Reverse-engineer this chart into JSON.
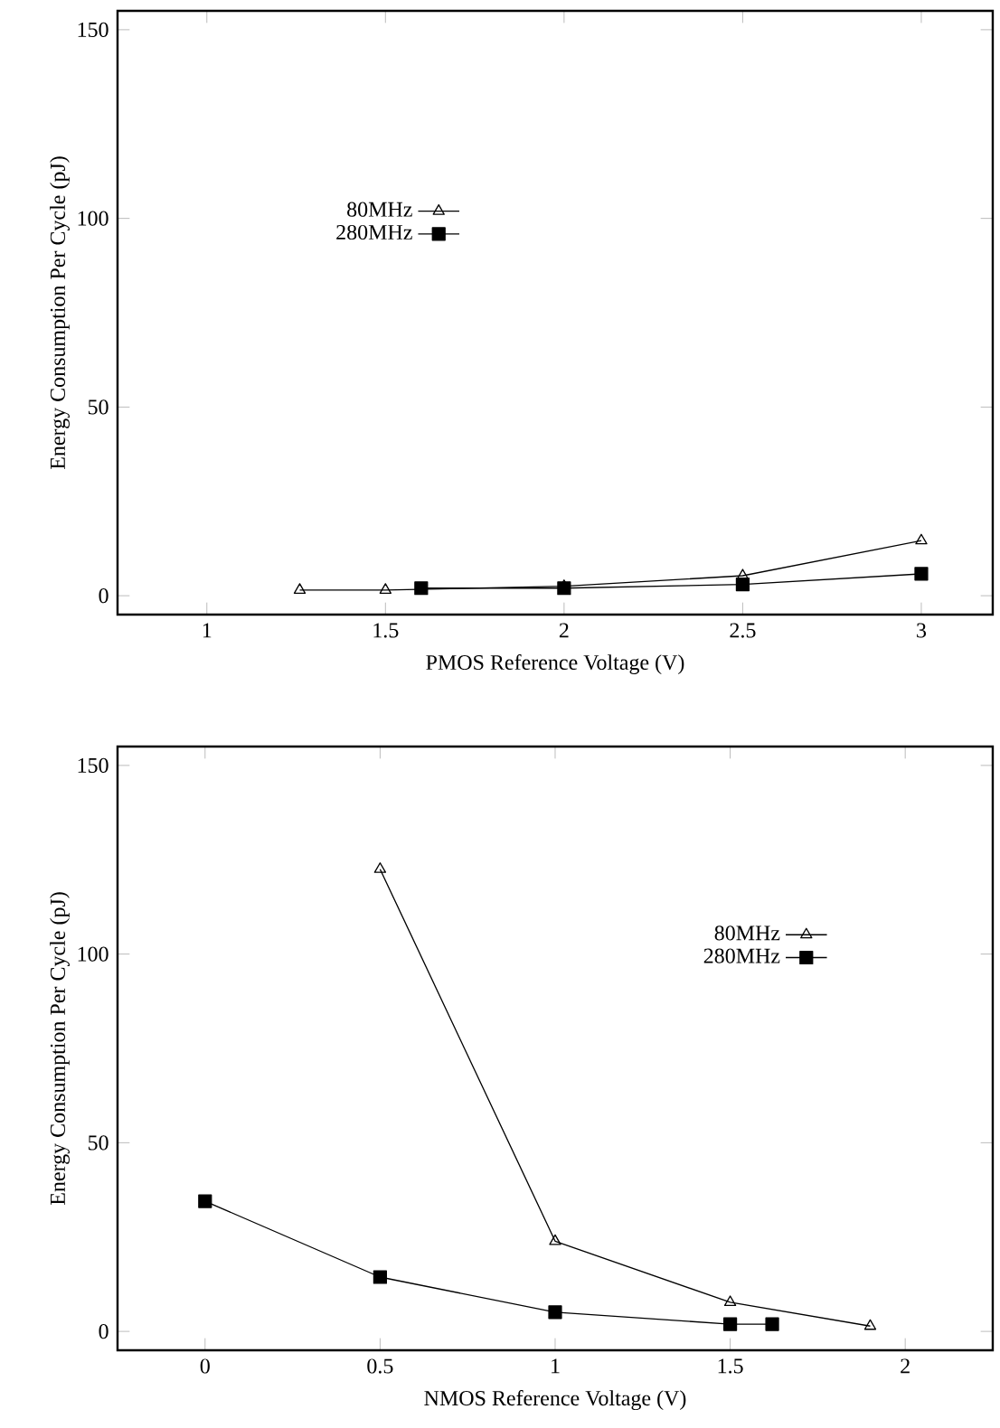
{
  "chart_data": [
    {
      "type": "line",
      "xlabel": "PMOS Reference Voltage (V)",
      "ylabel": "Energy Consumption Per Cycle (pJ)",
      "xlim": [
        0.75,
        3.2
      ],
      "ylim": [
        -5,
        155
      ],
      "xticks": [
        1,
        1.5,
        2,
        2.5,
        3
      ],
      "yticks": [
        0,
        50,
        100,
        150
      ],
      "legend": "left",
      "grid": false,
      "line_style": "solid",
      "series": [
        {
          "name": "80MHz",
          "color": "#000000",
          "marker": "triangle",
          "x": [
            1.26,
            1.5,
            2,
            2.5,
            3
          ],
          "values": [
            1.5,
            1.5,
            2.5,
            5.3,
            14.6
          ]
        },
        {
          "name": "280MHz",
          "color": "#000000",
          "marker": "square",
          "x": [
            1.6,
            2,
            2.5,
            3
          ],
          "values": [
            2,
            2,
            3,
            5.8
          ]
        }
      ]
    },
    {
      "type": "line",
      "xlabel": "NMOS Reference Voltage (V)",
      "ylabel": "Energy Consumption Per Cycle (pJ)",
      "xlim": [
        -0.25,
        2.25
      ],
      "ylim": [
        -5,
        155
      ],
      "xticks": [
        0,
        0.5,
        1,
        1.5,
        2
      ],
      "yticks": [
        0,
        50,
        100,
        150
      ],
      "legend": "top right",
      "grid": false,
      "line_style": "solid",
      "series": [
        {
          "name": "80MHz",
          "color": "#000000",
          "marker": "triangle",
          "x": [
            0.5,
            1,
            1.5,
            1.9
          ],
          "values": [
            122.5,
            23.9,
            7.7,
            1.4
          ]
        },
        {
          "name": "280MHz",
          "color": "#000000",
          "marker": "square",
          "x": [
            0,
            0.5,
            1,
            1.5,
            1.62
          ],
          "values": [
            34.5,
            14.4,
            5.1,
            1.9,
            1.9
          ]
        }
      ]
    }
  ]
}
